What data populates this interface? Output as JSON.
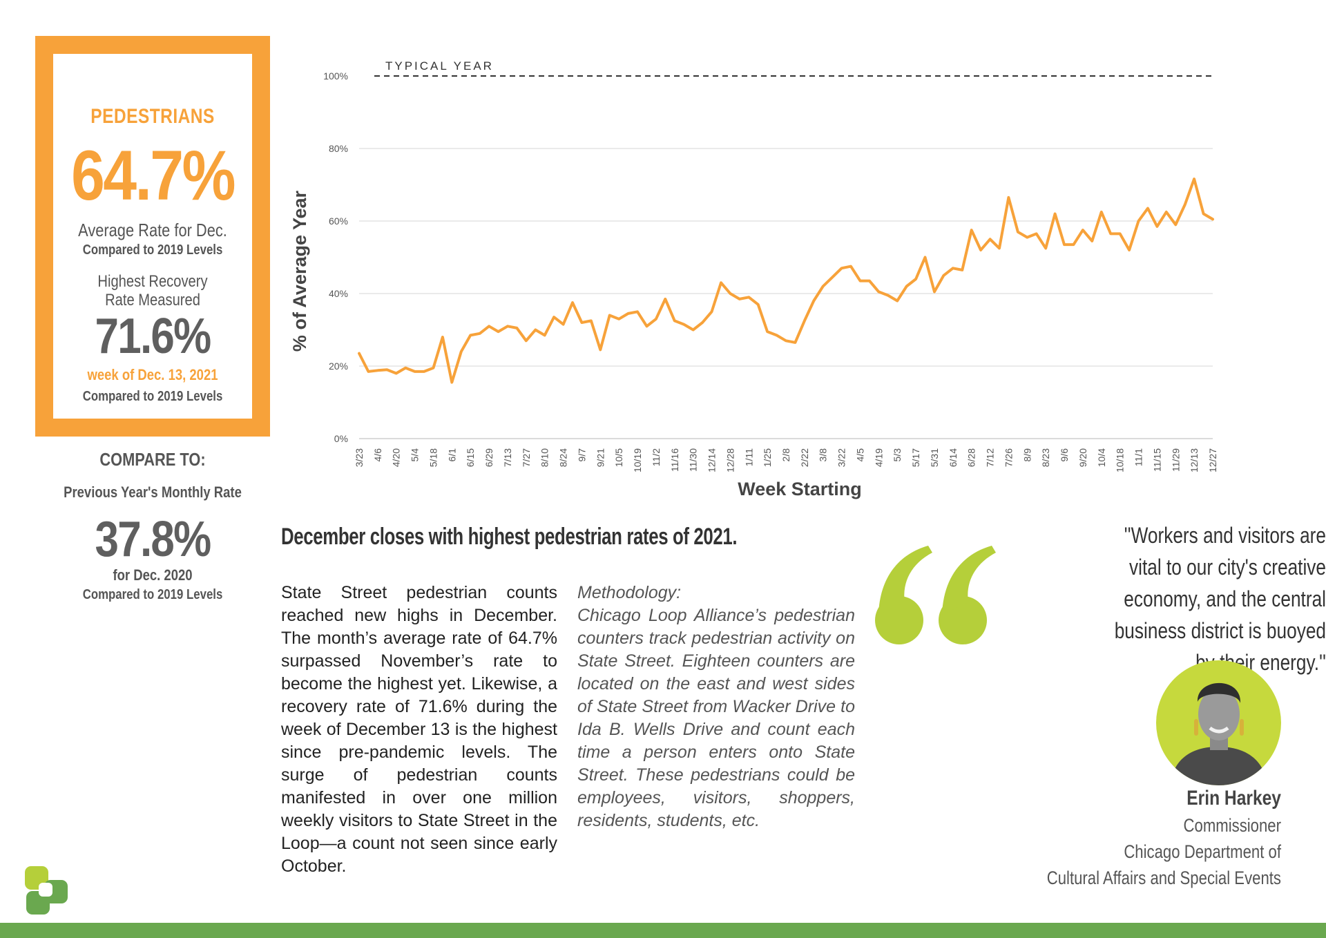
{
  "stats": {
    "pedestrians_label": "PEDESTRIANS",
    "avg_rate_value": "64.7%",
    "avg_rate_label": "Average Rate for Dec.",
    "avg_rate_sub": "Compared to 2019 Levels",
    "highest_label_line1": "Highest Recovery",
    "highest_label_line2": "Rate Measured",
    "highest_value": "71.6%",
    "highest_week": "week of Dec. 13, 2021",
    "highest_sub": "Compared to 2019 Levels"
  },
  "compare": {
    "title": "COMPARE TO:",
    "label": "Previous Year's Monthly Rate",
    "value": "37.8%",
    "for_label": "for Dec. 2020",
    "sub": "Compared to 2019 Levels"
  },
  "chart_data": {
    "type": "line",
    "xlabel": "Week Starting",
    "ylabel": "% of Average Year",
    "ylim": [
      0,
      100
    ],
    "yticks": [
      "0%",
      "20%",
      "40%",
      "60%",
      "80%",
      "100%"
    ],
    "reference_line": {
      "value": 100,
      "label": "TYPICAL YEAR"
    },
    "tick_labels": [
      "3/23",
      "4/6",
      "4/20",
      "5/4",
      "5/18",
      "6/1",
      "6/15",
      "6/29",
      "7/13",
      "7/27",
      "8/10",
      "8/24",
      "9/7",
      "9/21",
      "10/5",
      "10/19",
      "11/2",
      "11/16",
      "11/30",
      "12/14",
      "12/28",
      "1/11",
      "1/25",
      "2/8",
      "2/22",
      "3/8",
      "3/22",
      "4/5",
      "4/19",
      "5/3",
      "5/17",
      "5/31",
      "6/14",
      "6/28",
      "7/12",
      "7/26",
      "8/9",
      "8/23",
      "9/6",
      "9/20",
      "10/4",
      "10/18",
      "11/1",
      "11/15",
      "11/29",
      "12/13",
      "12/27"
    ],
    "values": [
      23.5,
      18.5,
      18.8,
      19,
      18,
      19.5,
      18.5,
      18.5,
      19.5,
      28,
      15.5,
      24,
      28.5,
      29,
      31,
      29.5,
      31,
      30.5,
      27,
      30,
      28.5,
      33.5,
      31.5,
      37.5,
      32,
      32.5,
      24.5,
      34,
      33,
      34.5,
      35,
      31,
      33,
      38.5,
      32.5,
      31.5,
      30,
      32,
      35,
      43,
      40,
      38.5,
      39,
      37,
      29.5,
      28.5,
      27,
      26.5,
      32.5,
      38,
      42,
      44.5,
      47,
      47.5,
      43.5,
      43.5,
      40.5,
      39.5,
      38,
      42,
      44,
      50,
      40.5,
      45,
      47,
      46.5,
      57.5,
      52,
      55,
      52.5,
      66.5,
      57,
      55.5,
      56.5,
      52.5,
      62,
      53.5,
      53.5,
      57.5,
      54.5,
      62.5,
      56.5,
      56.5,
      52,
      60,
      63.5,
      58.5,
      62.5,
      59,
      64.5,
      71.6,
      62,
      60.5
    ],
    "line_color": "#f7a23a",
    "grid": true
  },
  "article": {
    "headline": "December closes with highest pedestrian rates of 2021.",
    "body": "State Street pedestrian counts reached new highs in December. The month’s average rate of 64.7% surpassed November’s rate to become the highest yet. Likewise, a recovery rate of 71.6% during the week of December 13 is the highest since pre-pandemic levels. The surge of pedestrian counts manifested in over one million weekly visitors to State Street in the Loop—a count not seen since early October.",
    "methodology_title": "Methodology:",
    "methodology": "Chicago Loop Alliance’s pedestrian counters track pedestrian activity on State Street. Eighteen counters are located on the east and west sides of State Street from Wacker Drive to Ida B. Wells Drive and count each time a person enters onto State Street. These pedestrians could be employees, visitors, shoppers, residents, students, etc."
  },
  "quote": {
    "text": "''Workers and visitors are vital to our city's creative economy, and the central business district is buoyed by their energy.''",
    "name": "Erin Harkey",
    "title": "Commissioner",
    "org_line1": "Chicago Department of",
    "org_line2": "Cultural Affairs and Special Events"
  },
  "colors": {
    "accent_orange": "#f7a23a",
    "accent_green": "#b5cf3a",
    "footer_green": "#6aa84f"
  }
}
